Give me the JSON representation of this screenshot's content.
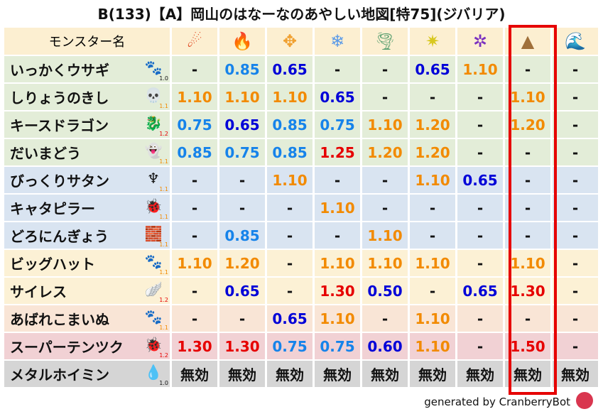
{
  "title": "B(133)【A】岡山のはなーなのあやしい地図[特75](ジバリア)",
  "header": {
    "name_label": "モンスター名",
    "elements": [
      {
        "icon": "fireball-icon",
        "glyph": "☄",
        "color": "#e0421a"
      },
      {
        "icon": "flame-icon",
        "glyph": "🔥",
        "color": "#f06020"
      },
      {
        "icon": "wind-cross-icon",
        "glyph": "✥",
        "color": "#f0a030"
      },
      {
        "icon": "ice-flower-icon",
        "glyph": "❄",
        "color": "#5a9ae8"
      },
      {
        "icon": "tornado-icon",
        "glyph": "🌪",
        "color": "#5aa070"
      },
      {
        "icon": "lightning-star-icon",
        "glyph": "✷",
        "color": "#d8c820"
      },
      {
        "icon": "dark-swirl-icon",
        "glyph": "✲",
        "color": "#7a30c0"
      },
      {
        "icon": "earth-rock-icon",
        "glyph": "▲",
        "color": "#a0703a"
      },
      {
        "icon": "water-wave-icon",
        "glyph": "🌊",
        "color": "#2a70d0"
      }
    ],
    "highlight_column": 7
  },
  "rows": [
    {
      "name": "いっかくウサギ",
      "icon": "paw-icon",
      "glyph": "🐾",
      "mult": "1.0",
      "bg": "g",
      "values": [
        "-",
        "0.85",
        "0.65",
        "-",
        "-",
        "0.65",
        "1.10",
        "-",
        "-"
      ]
    },
    {
      "name": "しりょうのきし",
      "icon": "skull-icon",
      "glyph": "💀",
      "mult": "1.1",
      "bg": "g",
      "values": [
        "1.10",
        "1.10",
        "1.10",
        "0.65",
        "-",
        "-",
        "-",
        "1.10",
        "-"
      ]
    },
    {
      "name": "キースドラゴン",
      "icon": "dragon-icon",
      "glyph": "🐉",
      "mult": "1.2",
      "bg": "g",
      "values": [
        "0.75",
        "0.65",
        "0.85",
        "0.75",
        "1.10",
        "1.20",
        "-",
        "1.20",
        "-"
      ]
    },
    {
      "name": "だいまどう",
      "icon": "ghost-slime-icon",
      "glyph": "👻",
      "mult": "1.1",
      "bg": "g",
      "values": [
        "0.85",
        "0.75",
        "0.85",
        "1.25",
        "1.20",
        "1.20",
        "-",
        "-",
        "-"
      ]
    },
    {
      "name": "びっくりサタン",
      "icon": "demon-icon",
      "glyph": "♆",
      "mult": "1.1",
      "bg": "b",
      "values": [
        "-",
        "-",
        "1.10",
        "-",
        "-",
        "1.10",
        "0.65",
        "-",
        "-"
      ]
    },
    {
      "name": "キャタピラー",
      "icon": "insect-icon",
      "glyph": "🐞",
      "mult": "1.1",
      "bg": "b",
      "values": [
        "-",
        "-",
        "-",
        "1.10",
        "-",
        "-",
        "-",
        "-",
        "-"
      ]
    },
    {
      "name": "どろにんぎょう",
      "icon": "brick-icon",
      "glyph": "🧱",
      "mult": "1.1",
      "bg": "b",
      "values": [
        "-",
        "0.85",
        "-",
        "-",
        "1.10",
        "-",
        "-",
        "-",
        "-"
      ]
    },
    {
      "name": "ビッグハット",
      "icon": "paw-icon",
      "glyph": "🐾",
      "mult": "1.1",
      "bg": "y",
      "values": [
        "1.10",
        "1.20",
        "-",
        "1.10",
        "1.10",
        "1.10",
        "-",
        "1.10",
        "-"
      ]
    },
    {
      "name": "サイレス",
      "icon": "wing-icon",
      "glyph": "🪽",
      "mult": "1.2",
      "bg": "y",
      "values": [
        "-",
        "0.65",
        "-",
        "1.30",
        "0.50",
        "-",
        "0.65",
        "1.30",
        "-"
      ]
    },
    {
      "name": "あばれこまいぬ",
      "icon": "paw-icon",
      "glyph": "🐾",
      "mult": "1.1",
      "bg": "p",
      "values": [
        "-",
        "-",
        "0.65",
        "1.10",
        "-",
        "1.10",
        "-",
        "-",
        "-"
      ]
    },
    {
      "name": "スーパーテンツク",
      "icon": "insect-icon",
      "glyph": "🐞",
      "mult": "1.2",
      "bg": "r",
      "values": [
        "1.30",
        "1.30",
        "0.75",
        "0.75",
        "0.60",
        "1.10",
        "-",
        "1.50",
        "-"
      ]
    },
    {
      "name": "メタルホイミン",
      "icon": "slime-icon",
      "glyph": "💧",
      "mult": "1.0",
      "bg": "k",
      "values": [
        "無効",
        "無効",
        "無効",
        "無効",
        "無効",
        "無効",
        "無効",
        "無効",
        "無効"
      ]
    }
  ],
  "colors": {
    "low": "#0000d8",
    "mid_low": "#1683ea",
    "mid_high": "#f28a00",
    "high": "#e60000",
    "highlight": "#e60000"
  },
  "footer": {
    "text": "generated by CranberryBot",
    "icon": "cranberry-bot-icon"
  }
}
